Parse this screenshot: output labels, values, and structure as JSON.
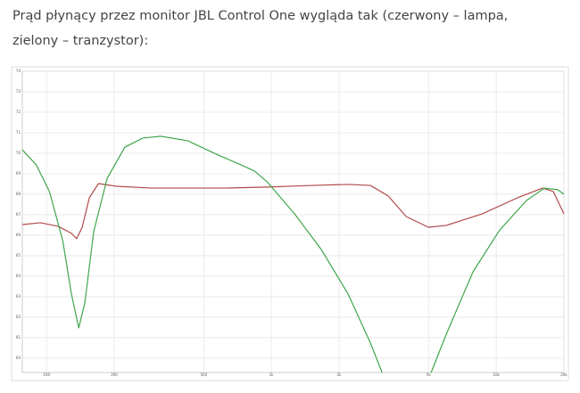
{
  "paragraph": "Prąd płynący przez monitor JBL Control One wygląda tak (czerwony – lampa, zielony – tranzystor):",
  "chart_data": {
    "type": "line",
    "xscale": "log",
    "grid": true,
    "xlim": [
      78,
      20000
    ],
    "xticks": [
      100,
      200,
      500,
      {
        "value": 1000,
        "label": "1k"
      },
      {
        "value": 2000,
        "label": "2k"
      },
      {
        "value": 5000,
        "label": "5k"
      },
      {
        "value": 10000,
        "label": "10k"
      },
      {
        "value": 20000,
        "label": "20k"
      }
    ],
    "ylim": [
      59.3,
      74
    ],
    "yticks": [
      60,
      61,
      62,
      63,
      64,
      65,
      66,
      67,
      68,
      69,
      70,
      71,
      72,
      73,
      74
    ],
    "series": [
      {
        "color": "#b04a4a",
        "x": [
          78,
          94,
          113,
          129,
          136,
          144,
          155,
          170,
          204,
          294,
          611,
          964,
          1523,
          2194,
          2757,
          3311,
          3975,
          4993,
          5995,
          8644,
          12452,
          16077,
          17947,
          20000
        ],
        "values": [
          66.52,
          66.61,
          66.43,
          66.09,
          65.83,
          66.39,
          67.83,
          68.52,
          68.39,
          68.3,
          68.3,
          68.35,
          68.43,
          68.48,
          68.43,
          67.91,
          66.91,
          66.39,
          66.48,
          67.04,
          67.83,
          68.3,
          68.13,
          67.04
        ]
      },
      {
        "color": "#3fa64a",
        "x": [
          78,
          90,
          103,
          118,
          129,
          139,
          148,
          162,
          186,
          223,
          268,
          322,
          424,
          557,
          733,
          841,
          964,
          1268,
          1667,
          2194,
          2757,
          3105,
          4000,
          5134,
          5995,
          7887,
          10372,
          13646,
          16380,
          18788,
          20000
        ],
        "values": [
          70.17,
          69.43,
          68.13,
          65.74,
          63.13,
          61.48,
          62.7,
          66.17,
          68.78,
          70.3,
          70.74,
          70.83,
          70.61,
          70.0,
          69.43,
          69.13,
          68.57,
          67.04,
          65.3,
          63.13,
          60.74,
          59.3,
          null,
          59.3,
          61.17,
          64.22,
          66.26,
          67.7,
          68.3,
          68.22,
          68.0
        ]
      }
    ]
  }
}
